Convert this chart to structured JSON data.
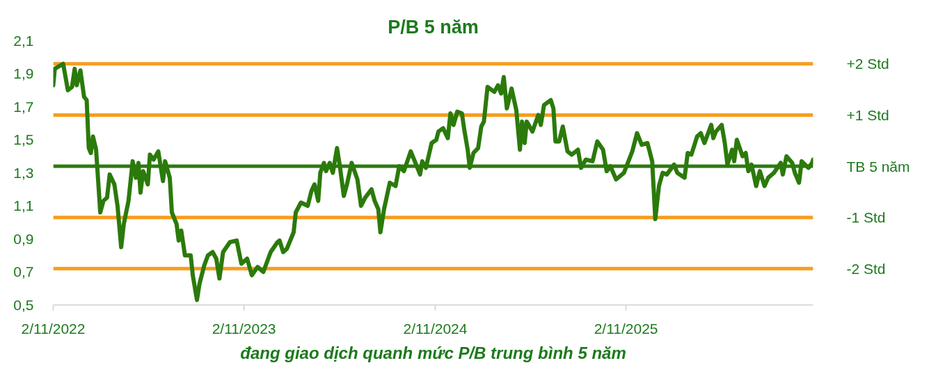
{
  "chart_data": {
    "type": "line",
    "title": "P/B 5 năm",
    "annotations": [
      "đang giao dịch quanh mức P/B trung bình 5 năm"
    ],
    "x": [
      "2022-11-02",
      "2022-11-05",
      "2022-11-21",
      "2022-11-30",
      "2022-12-08",
      "2022-12-13",
      "2022-12-17",
      "2022-12-24",
      "2022-12-31",
      "2023-01-05",
      "2023-01-09",
      "2023-01-13",
      "2023-01-17",
      "2023-01-23",
      "2023-01-27",
      "2023-01-31",
      "2023-02-06",
      "2023-02-13",
      "2023-02-18",
      "2023-02-27",
      "2023-03-05",
      "2023-03-12",
      "2023-03-17",
      "2023-03-26",
      "2023-04-03",
      "2023-04-09",
      "2023-04-14",
      "2023-04-18",
      "2023-04-23",
      "2023-05-02",
      "2023-05-06",
      "2023-05-13",
      "2023-05-22",
      "2023-05-31",
      "2023-06-04",
      "2023-06-13",
      "2023-06-17",
      "2023-06-26",
      "2023-06-30",
      "2023-07-05",
      "2023-07-12",
      "2023-07-23",
      "2023-07-27",
      "2023-08-04",
      "2023-08-09",
      "2023-08-18",
      "2023-08-25",
      "2023-09-03",
      "2023-09-10",
      "2023-09-16",
      "2023-09-23",
      "2023-10-06",
      "2023-10-19",
      "2023-10-28",
      "2023-11-08",
      "2023-11-17",
      "2023-11-28",
      "2023-12-09",
      "2023-12-23",
      "2024-01-05",
      "2024-01-09",
      "2024-01-16",
      "2024-01-23",
      "2024-02-05",
      "2024-02-09",
      "2024-02-19",
      "2024-03-03",
      "2024-03-10",
      "2024-03-16",
      "2024-03-23",
      "2024-03-27",
      "2024-04-03",
      "2024-04-07",
      "2024-04-14",
      "2024-04-20",
      "2024-04-28",
      "2024-05-03",
      "2024-05-11",
      "2024-05-17",
      "2024-05-26",
      "2024-06-06",
      "2024-06-13",
      "2024-06-21",
      "2024-07-03",
      "2024-07-09",
      "2024-07-16",
      "2024-07-20",
      "2024-07-27",
      "2024-08-07",
      "2024-08-18",
      "2024-08-25",
      "2024-09-03",
      "2024-09-16",
      "2024-10-04",
      "2024-10-08",
      "2024-10-15",
      "2024-10-26",
      "2024-11-04",
      "2024-11-08",
      "2024-11-17",
      "2024-11-26",
      "2024-12-01",
      "2024-12-07",
      "2024-12-14",
      "2024-12-23",
      "2024-12-27",
      "2025-01-03",
      "2025-01-07",
      "2025-01-14",
      "2025-01-23",
      "2025-01-29",
      "2025-02-03",
      "2025-02-10",
      "2025-02-23",
      "2025-03-02",
      "2025-03-08",
      "2025-03-13",
      "2025-03-19",
      "2025-03-28",
      "2025-04-06",
      "2025-04-13",
      "2025-04-17",
      "2025-04-22",
      "2025-04-26",
      "2025-05-07",
      "2025-05-18",
      "2025-05-23",
      "2025-05-29",
      "2025-06-11",
      "2025-06-16",
      "2025-06-20",
      "2025-06-27",
      "2025-07-04",
      "2025-07-13",
      "2025-07-21",
      "2025-08-02",
      "2025-08-08",
      "2025-08-17",
      "2025-08-30",
      "2025-09-08",
      "2025-09-19",
      "2025-09-26",
      "2025-10-03",
      "2025-10-14",
      "2025-10-29",
      "2025-11-14",
      "2025-11-23",
      "2025-12-02",
      "2025-12-13",
      "2025-12-22",
      "2025-12-28",
      "2026-01-04",
      "2026-01-11",
      "2026-01-19",
      "2026-02-02",
      "2026-02-08",
      "2026-02-22",
      "2026-02-28",
      "2026-03-07",
      "2026-03-18",
      "2026-03-25",
      "2026-04-01",
      "2026-04-14",
      "2026-04-18",
      "2026-04-23",
      "2026-05-04",
      "2026-05-10",
      "2026-05-15",
      "2026-05-24",
      "2026-05-28",
      "2026-06-02",
      "2026-06-13",
      "2026-06-19",
      "2026-06-24",
      "2026-06-30",
      "2026-07-09",
      "2026-07-16",
      "2026-07-25",
      "2026-08-01",
      "2026-08-12",
      "2026-08-25",
      "2026-08-29",
      "2026-09-05",
      "2026-09-16",
      "2026-09-21",
      "2026-09-29",
      "2026-10-04",
      "2026-10-17",
      "2026-10-24",
      "2026-10-26"
    ],
    "series": [
      {
        "color": "#2b7a0b",
        "values": [
          1.83,
          1.93,
          1.96,
          1.8,
          1.82,
          1.93,
          1.83,
          1.92,
          1.76,
          1.74,
          1.45,
          1.42,
          1.52,
          1.44,
          1.25,
          1.06,
          1.13,
          1.15,
          1.29,
          1.23,
          1.1,
          0.85,
          0.99,
          1.13,
          1.37,
          1.27,
          1.36,
          1.18,
          1.31,
          1.23,
          1.41,
          1.38,
          1.43,
          1.25,
          1.37,
          1.27,
          1.06,
          0.99,
          0.89,
          0.95,
          0.8,
          0.8,
          0.68,
          0.53,
          0.63,
          0.74,
          0.8,
          0.82,
          0.78,
          0.66,
          0.82,
          0.88,
          0.89,
          0.75,
          0.78,
          0.68,
          0.73,
          0.7,
          0.82,
          0.88,
          0.89,
          0.82,
          0.84,
          0.94,
          1.06,
          1.12,
          1.1,
          1.19,
          1.23,
          1.13,
          1.3,
          1.36,
          1.31,
          1.36,
          1.3,
          1.45,
          1.35,
          1.16,
          1.23,
          1.36,
          1.26,
          1.1,
          1.15,
          1.2,
          1.13,
          1.08,
          0.94,
          1.08,
          1.24,
          1.22,
          1.34,
          1.31,
          1.43,
          1.29,
          1.37,
          1.33,
          1.48,
          1.5,
          1.55,
          1.57,
          1.51,
          1.66,
          1.59,
          1.67,
          1.66,
          1.57,
          1.44,
          1.33,
          1.42,
          1.45,
          1.58,
          1.61,
          1.82,
          1.79,
          1.83,
          1.78,
          1.88,
          1.69,
          1.81,
          1.68,
          1.44,
          1.61,
          1.48,
          1.61,
          1.55,
          1.65,
          1.59,
          1.71,
          1.74,
          1.69,
          1.49,
          1.49,
          1.58,
          1.43,
          1.41,
          1.44,
          1.33,
          1.38,
          1.37,
          1.49,
          1.44,
          1.31,
          1.34,
          1.26,
          1.3,
          1.43,
          1.54,
          1.47,
          1.48,
          1.37,
          1.02,
          1.22,
          1.3,
          1.29,
          1.35,
          1.3,
          1.27,
          1.42,
          1.41,
          1.52,
          1.54,
          1.48,
          1.59,
          1.51,
          1.55,
          1.59,
          1.48,
          1.35,
          1.44,
          1.37,
          1.5,
          1.4,
          1.42,
          1.31,
          1.35,
          1.22,
          1.31,
          1.22,
          1.27,
          1.3,
          1.36,
          1.29,
          1.4,
          1.36,
          1.3,
          1.24,
          1.37,
          1.33,
          1.36,
          1.38
        ]
      }
    ],
    "xlim": [
      "2022-11-02",
      "2026-10-26"
    ],
    "xticks": [
      {
        "value": "2022-11-02",
        "label": "2/11/2022"
      },
      {
        "value": "2023-11-02",
        "label": "2/11/2023"
      },
      {
        "value": "2024-11-02",
        "label": "2/11/2024"
      },
      {
        "value": "2025-11-02",
        "label": "2/11/2025"
      }
    ],
    "ylim": [
      0.5,
      2.1
    ],
    "yticks": [
      {
        "value": 0.5,
        "label": "0,5"
      },
      {
        "value": 0.7,
        "label": "0,7"
      },
      {
        "value": 0.9,
        "label": "0,9"
      },
      {
        "value": 1.1,
        "label": "1,1"
      },
      {
        "value": 1.3,
        "label": "1,3"
      },
      {
        "value": 1.5,
        "label": "1,5"
      },
      {
        "value": 1.7,
        "label": "1,7"
      },
      {
        "value": 1.9,
        "label": "1,9"
      },
      {
        "value": 2.1,
        "label": "2,1"
      }
    ],
    "ref_lines": [
      {
        "axis": "y",
        "value": 1.96,
        "label": "+2 Std",
        "color": "#f79d1e"
      },
      {
        "axis": "y",
        "value": 1.65,
        "label": "+1 Std",
        "color": "#f79d1e"
      },
      {
        "axis": "y",
        "value": 1.34,
        "label": "TB 5 năm",
        "color": "#2e7a12"
      },
      {
        "axis": "y",
        "value": 1.03,
        "label": "-1 Std",
        "color": "#f79d1e"
      },
      {
        "axis": "y",
        "value": 0.72,
        "label": "-2 Std",
        "color": "#f79d1e"
      }
    ],
    "grid": false,
    "line_style": "solid"
  }
}
